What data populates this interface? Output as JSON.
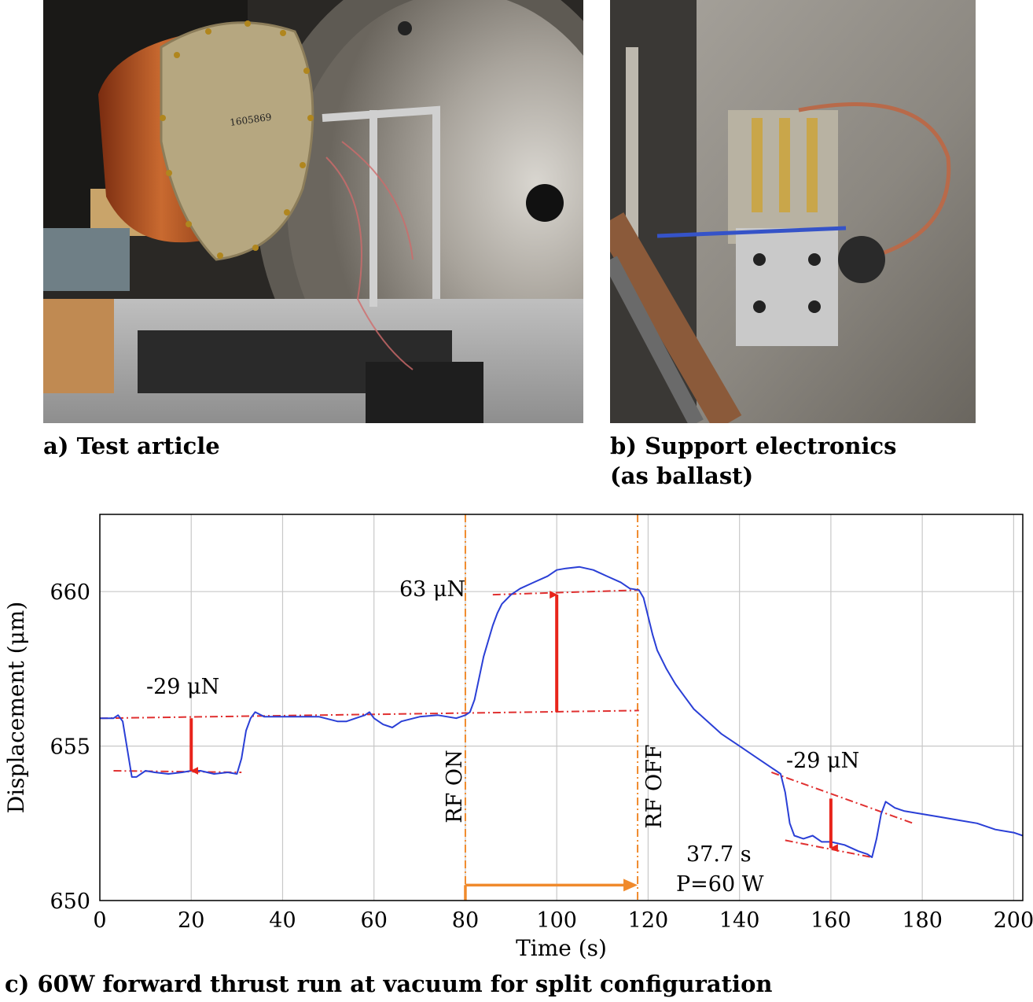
{
  "figure": {
    "caption_a": "a) Test article",
    "caption_b": "b) Support electronics (as ballast)",
    "caption_c": "c) 60W forward thrust run at vacuum for split configuration",
    "photo_a_label": "1605869"
  },
  "chart_data": {
    "type": "line",
    "xlabel": "Time (s)",
    "ylabel": "Displacement (μm)",
    "xlim": [
      0,
      202
    ],
    "ylim": [
      650,
      662.5
    ],
    "xticks": [
      0,
      20,
      40,
      60,
      80,
      100,
      120,
      140,
      160,
      180,
      200
    ],
    "yticks": [
      650,
      655,
      660
    ],
    "grid": true,
    "series": [
      {
        "color": "#2a3fd6",
        "x": [
          0,
          3,
          4,
          5,
          6,
          7,
          8,
          10,
          12,
          15,
          18,
          20,
          22,
          25,
          28,
          30,
          31,
          32,
          33,
          34,
          36,
          40,
          44,
          48,
          52,
          54,
          56,
          58,
          59,
          60,
          62,
          64,
          66,
          70,
          74,
          78,
          80,
          81,
          82,
          83,
          84,
          85,
          86,
          87,
          88,
          90,
          92,
          95,
          98,
          100,
          102,
          105,
          108,
          111,
          114,
          116,
          118,
          119,
          120,
          121,
          122,
          124,
          126,
          128,
          130,
          133,
          136,
          140,
          144,
          147,
          148,
          149,
          150,
          151,
          152,
          154,
          156,
          158,
          160,
          163,
          166,
          168,
          169,
          170,
          171,
          172,
          174,
          176,
          180,
          184,
          188,
          192,
          196,
          200,
          202
        ],
        "values": [
          655.9,
          655.9,
          656.0,
          655.8,
          654.9,
          654.0,
          654.0,
          654.2,
          654.15,
          654.1,
          654.15,
          654.2,
          654.2,
          654.1,
          654.15,
          654.1,
          654.6,
          655.5,
          655.9,
          656.1,
          655.95,
          655.95,
          655.95,
          655.95,
          655.8,
          655.8,
          655.9,
          656.0,
          656.1,
          655.9,
          655.7,
          655.6,
          655.8,
          655.95,
          656.0,
          655.9,
          656.0,
          656.1,
          656.5,
          657.2,
          657.9,
          658.4,
          658.9,
          659.3,
          659.6,
          659.9,
          660.1,
          660.3,
          660.5,
          660.7,
          660.75,
          660.8,
          660.7,
          660.5,
          660.3,
          660.1,
          660.05,
          659.8,
          659.2,
          658.6,
          658.1,
          657.5,
          657.0,
          656.6,
          656.2,
          655.8,
          655.4,
          655.0,
          654.6,
          654.3,
          654.2,
          654.1,
          653.5,
          652.5,
          652.1,
          652.0,
          652.1,
          651.9,
          651.9,
          651.8,
          651.6,
          651.5,
          651.4,
          652.0,
          652.8,
          653.2,
          653.0,
          652.9,
          652.8,
          652.7,
          652.6,
          652.5,
          652.3,
          652.2,
          652.1
        ]
      }
    ],
    "annotations": {
      "rf_on": {
        "label": "RF ON",
        "x": 80
      },
      "rf_off": {
        "label": "RF OFF",
        "x": 117.7
      },
      "thrust_mid": {
        "label": "63  μN",
        "arrow_x": 100,
        "arrow_from": 656.1,
        "arrow_to": 659.9
      },
      "thrust_left": {
        "label": "-29  μN",
        "arrow_x": 20,
        "arrow_from": 655.9,
        "arrow_to": 654.2
      },
      "thrust_right": {
        "label": "-29  μN",
        "arrow_x": 160,
        "arrow_from": 653.3,
        "arrow_to": 651.7
      },
      "duration_label": "37.7 s",
      "power_label": "P=60 W",
      "duration_span": [
        80,
        117.7
      ],
      "duration_arrow_y": 650.5
    },
    "fit_lines": [
      {
        "x": [
          0,
          118
        ],
        "values": [
          655.9,
          656.15
        ]
      },
      {
        "x": [
          86,
          118
        ],
        "values": [
          659.9,
          660.05
        ]
      },
      {
        "x": [
          3,
          31
        ],
        "values": [
          654.2,
          654.15
        ]
      },
      {
        "x": [
          147,
          178
        ],
        "values": [
          654.15,
          652.5
        ]
      },
      {
        "x": [
          150,
          169
        ],
        "values": [
          651.95,
          651.4
        ]
      }
    ],
    "colors": {
      "line": "#2a3fd6",
      "fit": "#e03030",
      "arrow": "#e8241b",
      "rf": "#f08a2c",
      "grid": "#c8c8c8"
    }
  }
}
